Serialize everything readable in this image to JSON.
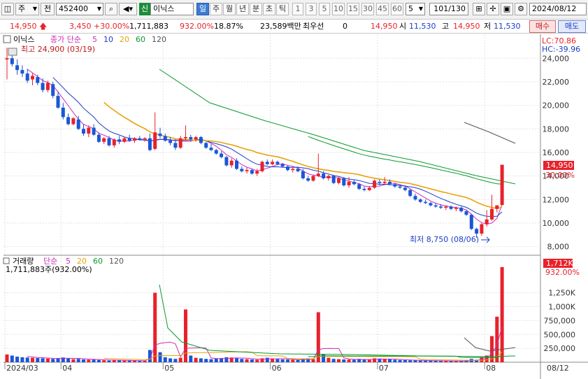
{
  "toolbar": {
    "market_label": "주",
    "period_label": "전",
    "code": "452400",
    "new_badge": "신",
    "stock_name": "이닉스",
    "tabs": [
      "일",
      "주",
      "월",
      "년",
      "분",
      "초",
      "틱"
    ],
    "numbers": [
      "1",
      "3",
      "5",
      "10",
      "15",
      "30",
      "45",
      "60"
    ],
    "count_value": "5",
    "page_counter": "101/130",
    "date": "2024/08/12"
  },
  "quote": {
    "price": "14,950",
    "change": "3,450",
    "change_pct": "+30.00%",
    "volume": "1,711,883",
    "volume_pct": "932.00%",
    "turnover": "18.87%",
    "amount": "23,589백만",
    "priority_label": "최우선",
    "priority_value": "0",
    "bid": "14,950",
    "open_label": "시",
    "open": "11,530",
    "high_label": "고",
    "high": "14,950",
    "low_label": "저",
    "low": "11,530",
    "buy_label": "매수",
    "sell_label": "매도"
  },
  "price_panel": {
    "name_label": "이닉스",
    "ma_legend_prefix": "종가 단순",
    "ma_periods": [
      "5",
      "10",
      "20",
      "60",
      "120"
    ],
    "ma_colors": [
      "#cc2db8",
      "#1a3cc8",
      "#e8a20c",
      "#0a9a2e",
      "#555555"
    ],
    "high_marker": "최고 24,900 (03/19)",
    "low_marker": "최저 8,750 (08/06)",
    "lc_label": "LC:70.86",
    "hc_label": "HC:-39.96",
    "last_price_tag": "14,950",
    "last_pct_tag": "30.00%"
  },
  "volume_panel": {
    "title": "거래량",
    "ma_legend_prefix": "단순",
    "ma_periods": [
      "5",
      "20",
      "60",
      "120"
    ],
    "ma_colors": [
      "#cc2db8",
      "#e8a20c",
      "#0a9a2e",
      "#555555"
    ],
    "value_label": "1,711,883주(932.00%)",
    "last_tag": "1,712K",
    "last_pct_tag": "932.00%"
  },
  "x_labels": {
    "ticks": [
      "2024/03",
      "04",
      "05",
      "06",
      "07",
      "08"
    ],
    "right": "08/12"
  },
  "chart_data": {
    "type": "candlestick",
    "y_ticks": [
      8000,
      10000,
      12000,
      14000,
      16000,
      18000,
      20000,
      22000,
      24000
    ],
    "y_tick_labels": [
      "8,000",
      "10,000",
      "12,000",
      "14,000",
      "16,000",
      "18,000",
      "20,000",
      "22,000",
      "24,000"
    ],
    "ylim": [
      7500,
      25800
    ],
    "vol_ticks": [
      250000,
      500000,
      750000,
      1000000,
      1250000
    ],
    "vol_tick_labels": [
      "250,000",
      "500,000",
      "750,000",
      "1,000K",
      "1,250K"
    ],
    "vol_ylim": [
      0,
      1850000
    ],
    "candles": [
      [
        23900,
        24900,
        22200,
        24000
      ],
      [
        24000,
        24300,
        23300,
        23500
      ],
      [
        23400,
        23900,
        22600,
        23000
      ],
      [
        23000,
        23400,
        22400,
        22700
      ],
      [
        22700,
        23100,
        21900,
        22100
      ],
      [
        22200,
        22700,
        21700,
        22500
      ],
      [
        22400,
        22600,
        21700,
        21900
      ],
      [
        21900,
        22300,
        21100,
        21300
      ],
      [
        21300,
        22100,
        21100,
        21900
      ],
      [
        21800,
        22000,
        20600,
        20800
      ],
      [
        20800,
        21200,
        19700,
        19800
      ],
      [
        19800,
        20200,
        18800,
        19000
      ],
      [
        19000,
        19300,
        18300,
        18400
      ],
      [
        18400,
        19000,
        18300,
        18900
      ],
      [
        18800,
        19100,
        17900,
        18000
      ],
      [
        18000,
        18400,
        17400,
        17600
      ],
      [
        17600,
        18300,
        17300,
        18100
      ],
      [
        18100,
        18400,
        17400,
        17500
      ],
      [
        17500,
        17700,
        16800,
        16900
      ],
      [
        16900,
        17300,
        16700,
        17200
      ],
      [
        17200,
        17400,
        16500,
        16600
      ],
      [
        16600,
        17200,
        16400,
        17100
      ],
      [
        17100,
        17400,
        16700,
        16900
      ],
      [
        16900,
        17300,
        16800,
        17200
      ],
      [
        17200,
        17500,
        16900,
        17000
      ],
      [
        17000,
        17300,
        16800,
        17200
      ],
      [
        17200,
        17400,
        17000,
        17100
      ],
      [
        17100,
        17300,
        16900,
        17200
      ],
      [
        17200,
        17600,
        16100,
        16200
      ],
      [
        16300,
        19400,
        16200,
        17700
      ],
      [
        17600,
        18100,
        17200,
        17400
      ],
      [
        17400,
        17600,
        16900,
        17000
      ],
      [
        17000,
        17300,
        16600,
        16800
      ],
      [
        16800,
        17100,
        16200,
        16400
      ],
      [
        16400,
        17400,
        16300,
        17200
      ],
      [
        17200,
        18300,
        17000,
        17300
      ],
      [
        17300,
        17500,
        16900,
        17100
      ],
      [
        17100,
        17400,
        16900,
        17300
      ],
      [
        17300,
        17400,
        16700,
        16800
      ],
      [
        16800,
        16900,
        16300,
        16400
      ],
      [
        16400,
        16700,
        16100,
        16200
      ],
      [
        16200,
        16300,
        15800,
        15900
      ],
      [
        15900,
        16100,
        15500,
        15600
      ],
      [
        15600,
        15700,
        14800,
        14900
      ],
      [
        14900,
        15500,
        14700,
        15300
      ],
      [
        15300,
        15500,
        14500,
        14600
      ],
      [
        14600,
        14800,
        14300,
        14400
      ],
      [
        14400,
        14700,
        14200,
        14500
      ],
      [
        14500,
        14600,
        14100,
        14200
      ],
      [
        14200,
        14600,
        14000,
        14400
      ],
      [
        14400,
        15300,
        14300,
        15200
      ],
      [
        15200,
        15400,
        14900,
        15000
      ],
      [
        15000,
        15400,
        14900,
        15200
      ],
      [
        15200,
        15300,
        14900,
        15000
      ],
      [
        15000,
        15100,
        14700,
        14800
      ],
      [
        14800,
        14900,
        14400,
        14500
      ],
      [
        14500,
        14800,
        14300,
        14600
      ],
      [
        14600,
        14800,
        14300,
        14400
      ],
      [
        14400,
        14600,
        13700,
        13800
      ],
      [
        13800,
        14000,
        13500,
        13600
      ],
      [
        13600,
        14100,
        13500,
        14000
      ],
      [
        14000,
        15900,
        13900,
        14200
      ],
      [
        14200,
        14400,
        13700,
        13800
      ],
      [
        13800,
        14100,
        13600,
        14000
      ],
      [
        14000,
        14100,
        13300,
        13400
      ],
      [
        13400,
        13900,
        13300,
        13800
      ],
      [
        13800,
        13900,
        13100,
        13200
      ],
      [
        13200,
        13900,
        13000,
        13500
      ],
      [
        13500,
        13700,
        13200,
        13300
      ],
      [
        13300,
        13400,
        12800,
        12900
      ],
      [
        12900,
        13100,
        12700,
        12800
      ],
      [
        12800,
        13100,
        12700,
        13000
      ],
      [
        13000,
        13700,
        12900,
        13600
      ],
      [
        13500,
        13700,
        13200,
        13400
      ],
      [
        13400,
        13900,
        13300,
        13500
      ],
      [
        13500,
        13700,
        13200,
        13300
      ],
      [
        13300,
        13400,
        13000,
        13100
      ],
      [
        13100,
        13300,
        12900,
        13000
      ],
      [
        13000,
        13200,
        12700,
        12800
      ],
      [
        12800,
        12900,
        12200,
        12300
      ],
      [
        12300,
        12500,
        11900,
        12000
      ],
      [
        12000,
        12100,
        11700,
        11800
      ],
      [
        11800,
        12000,
        11600,
        11700
      ],
      [
        11700,
        11800,
        11400,
        11500
      ],
      [
        11500,
        11700,
        11300,
        11400
      ],
      [
        11400,
        11600,
        11200,
        11300
      ],
      [
        11300,
        11500,
        11100,
        11400
      ],
      [
        11400,
        11500,
        11100,
        11200
      ],
      [
        11200,
        11400,
        11000,
        11300
      ],
      [
        11300,
        11400,
        10900,
        11000
      ],
      [
        11000,
        11100,
        10600,
        10700
      ],
      [
        10700,
        10800,
        9400,
        9500
      ],
      [
        9500,
        9600,
        8750,
        9100
      ],
      [
        9100,
        10000,
        8900,
        9900
      ],
      [
        9900,
        11100,
        9700,
        10300
      ],
      [
        10300,
        12400,
        10200,
        11200
      ],
      [
        11200,
        11500,
        10900,
        11500
      ],
      [
        11530,
        14950,
        11530,
        14950
      ]
    ],
    "volumes": [
      140000,
      120000,
      100000,
      90000,
      85000,
      80000,
      75000,
      70000,
      65000,
      60000,
      75000,
      85000,
      70000,
      55000,
      60000,
      50000,
      45000,
      50000,
      40000,
      35000,
      30000,
      40000,
      35000,
      30000,
      28000,
      25000,
      24000,
      25000,
      220000,
      1250000,
      180000,
      90000,
      70000,
      60000,
      80000,
      950000,
      120000,
      80000,
      70000,
      60000,
      55000,
      65000,
      75000,
      90000,
      85000,
      70000,
      60000,
      55000,
      50000,
      45000,
      70000,
      80000,
      65000,
      55000,
      50000,
      48000,
      45000,
      40000,
      60000,
      70000,
      55000,
      900000,
      140000,
      80000,
      60000,
      55000,
      50000,
      48000,
      45000,
      60000,
      50000,
      45000,
      70000,
      65000,
      55000,
      50000,
      45000,
      40000,
      38000,
      35000,
      32000,
      30000,
      28000,
      26000,
      25000,
      24000,
      23000,
      22000,
      21000,
      20000,
      30000,
      60000,
      45000,
      90000,
      120000,
      470000,
      820000,
      1711883
    ]
  }
}
